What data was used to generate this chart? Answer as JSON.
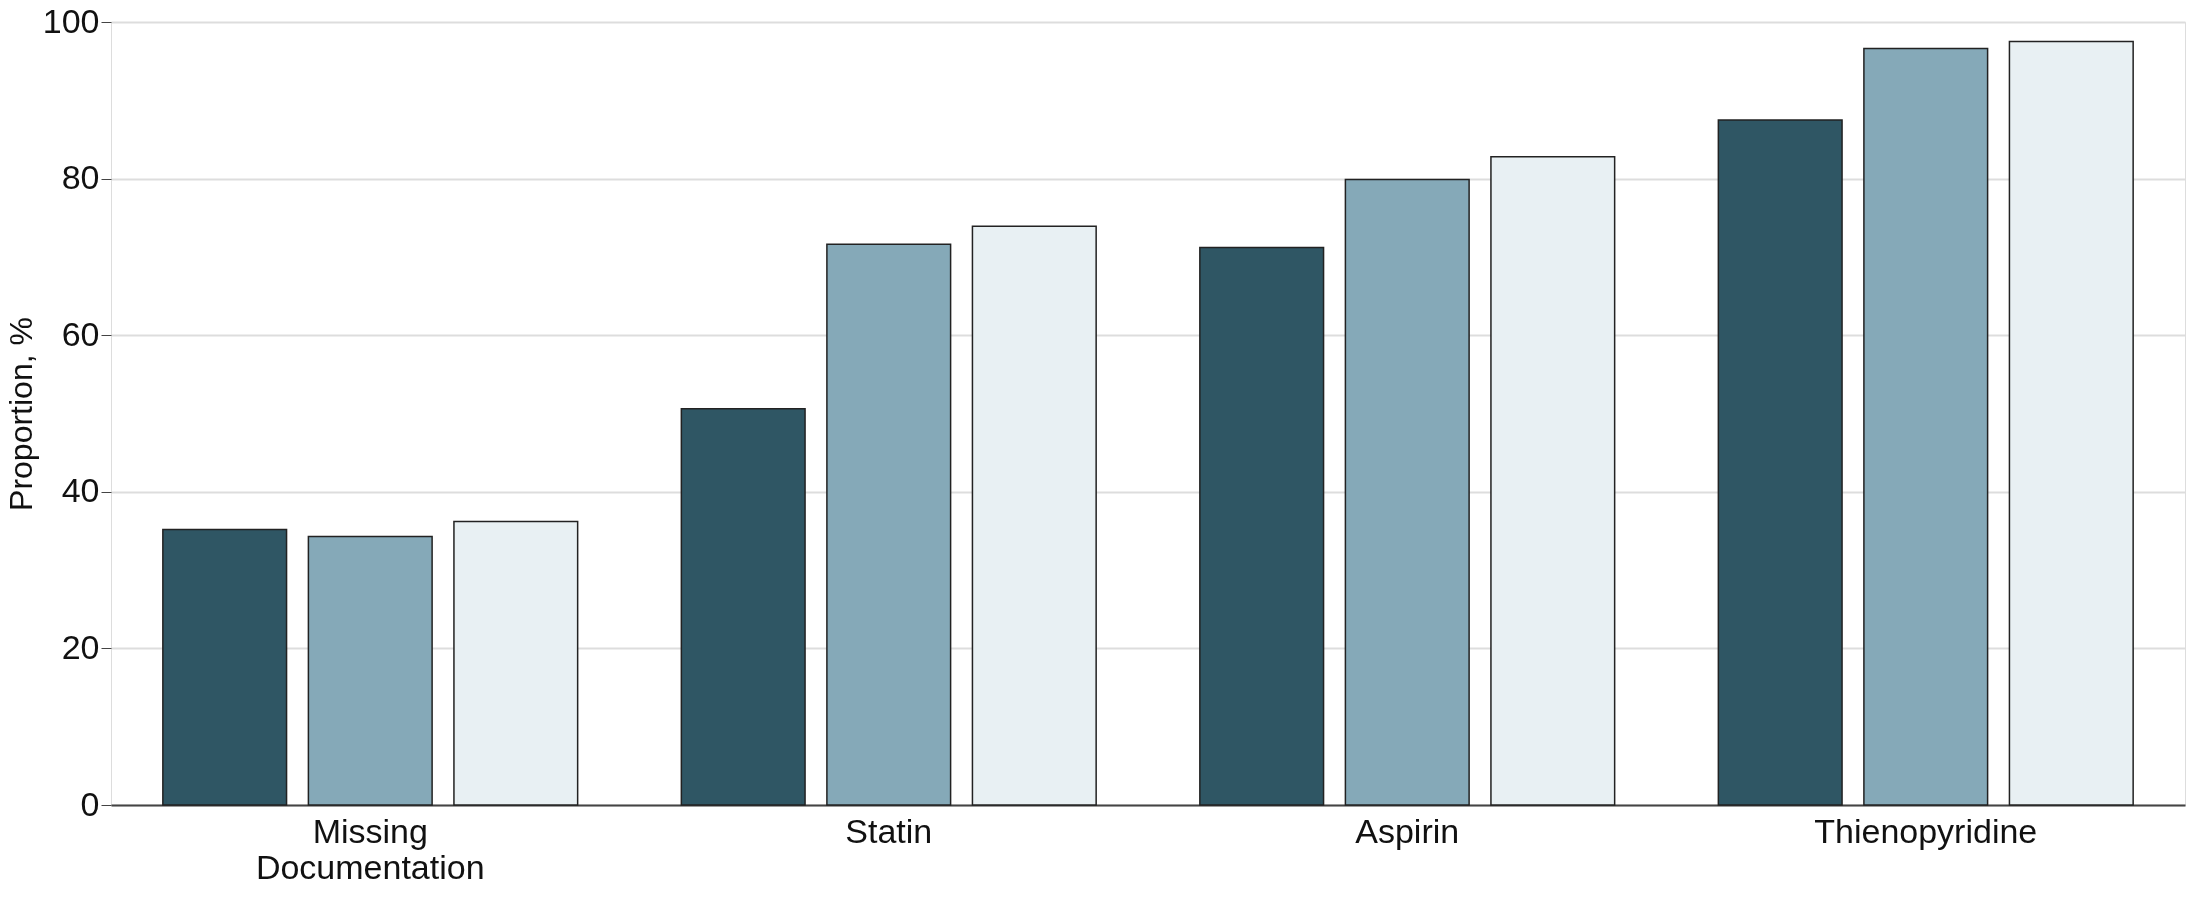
{
  "chart_data": {
    "type": "bar",
    "ylabel": "Proportion, %",
    "categories": [
      "Missing Documentation",
      "Statin",
      "Aspirin",
      "Thienopyridine"
    ],
    "series": [
      {
        "color": "#2f5664",
        "values": [
          35.2,
          50.6,
          71.2,
          87.5
        ]
      },
      {
        "color": "#85a9b8",
        "values": [
          34.3,
          71.6,
          79.9,
          96.6
        ]
      },
      {
        "color": "#e8f0f3",
        "values": [
          36.2,
          73.9,
          82.8,
          97.5
        ]
      }
    ],
    "ylim": [
      0,
      100
    ],
    "yticks": [
      0,
      20,
      40,
      60,
      80,
      100
    ],
    "grid": "y",
    "legend": false
  }
}
